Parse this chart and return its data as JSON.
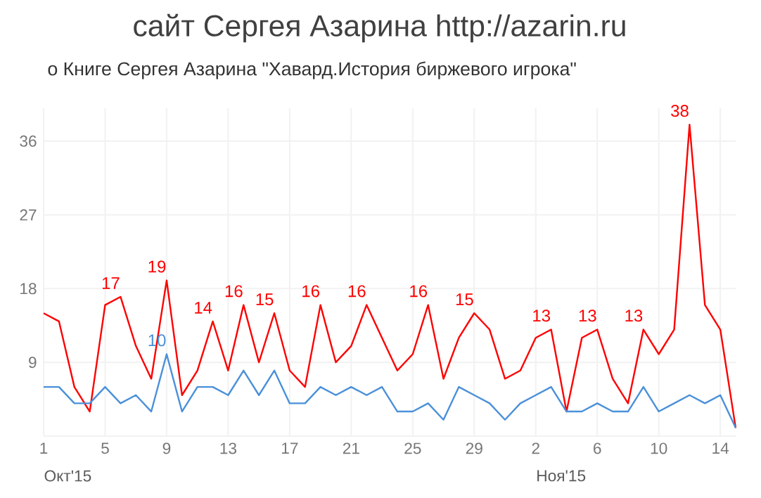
{
  "chart_data": {
    "type": "line",
    "title": "сайт Сергея Азарина http://azarin.ru",
    "subtitle": "о Книге Сергея Азарина \"Хавард.История биржевого игрока\"",
    "x": [
      "2015-10-01",
      "2015-10-02",
      "2015-10-03",
      "2015-10-04",
      "2015-10-05",
      "2015-10-06",
      "2015-10-07",
      "2015-10-08",
      "2015-10-09",
      "2015-10-10",
      "2015-10-11",
      "2015-10-12",
      "2015-10-13",
      "2015-10-14",
      "2015-10-15",
      "2015-10-16",
      "2015-10-17",
      "2015-10-18",
      "2015-10-19",
      "2015-10-20",
      "2015-10-21",
      "2015-10-22",
      "2015-10-23",
      "2015-10-24",
      "2015-10-25",
      "2015-10-26",
      "2015-10-27",
      "2015-10-28",
      "2015-10-29",
      "2015-10-30",
      "2015-10-31",
      "2015-11-01",
      "2015-11-02",
      "2015-11-03",
      "2015-11-04",
      "2015-11-05",
      "2015-11-06",
      "2015-11-07",
      "2015-11-08",
      "2015-11-09",
      "2015-11-10",
      "2015-11-11",
      "2015-11-12",
      "2015-11-13",
      "2015-11-14",
      "2015-11-15"
    ],
    "series": [
      {
        "color": "#ff0000",
        "values": [
          15,
          14,
          6,
          3,
          16,
          17,
          11,
          7,
          19,
          5,
          8,
          14,
          8,
          16,
          9,
          15,
          8,
          6,
          16,
          9,
          11,
          16,
          12,
          8,
          10,
          16,
          7,
          12,
          15,
          13,
          7,
          8,
          12,
          13,
          3,
          12,
          13,
          7,
          4,
          13,
          10,
          13,
          38,
          16,
          13,
          1
        ],
        "value_labels": [
          null,
          null,
          null,
          null,
          null,
          "17",
          null,
          null,
          "19",
          null,
          null,
          "14",
          null,
          "16",
          null,
          "15",
          null,
          null,
          "16",
          null,
          null,
          "16",
          null,
          null,
          null,
          "16",
          null,
          null,
          "15",
          null,
          null,
          null,
          null,
          "13",
          null,
          null,
          "13",
          null,
          null,
          "13",
          null,
          null,
          "38",
          null,
          null,
          null
        ]
      },
      {
        "color": "#4a90d9",
        "values": [
          6,
          6,
          4,
          4,
          6,
          4,
          5,
          3,
          10,
          3,
          6,
          6,
          5,
          8,
          5,
          8,
          4,
          4,
          6,
          5,
          6,
          5,
          6,
          3,
          3,
          4,
          2,
          6,
          5,
          4,
          2,
          4,
          5,
          6,
          3,
          3,
          4,
          3,
          3,
          6,
          3,
          4,
          5,
          4,
          5,
          1
        ],
        "value_labels": [
          null,
          null,
          null,
          null,
          null,
          null,
          null,
          null,
          "10",
          null,
          null,
          null,
          null,
          null,
          null,
          null,
          null,
          null,
          null,
          null,
          null,
          null,
          null,
          null,
          null,
          null,
          null,
          null,
          null,
          null,
          null,
          null,
          null,
          null,
          null,
          null,
          null,
          null,
          null,
          null,
          null,
          null,
          null,
          null,
          null,
          null
        ]
      }
    ],
    "xlim": [
      "2015-10-01",
      "2015-11-15"
    ],
    "xticks": [
      {
        "value": "2015-10-01",
        "label": "1"
      },
      {
        "value": "2015-10-05",
        "label": "5"
      },
      {
        "value": "2015-10-09",
        "label": "9"
      },
      {
        "value": "2015-10-13",
        "label": "13"
      },
      {
        "value": "2015-10-17",
        "label": "17"
      },
      {
        "value": "2015-10-21",
        "label": "21"
      },
      {
        "value": "2015-10-25",
        "label": "25"
      },
      {
        "value": "2015-10-29",
        "label": "29"
      },
      {
        "value": "2015-11-02",
        "label": "2"
      },
      {
        "value": "2015-11-06",
        "label": "6"
      },
      {
        "value": "2015-11-10",
        "label": "10"
      },
      {
        "value": "2015-11-14",
        "label": "14"
      }
    ],
    "ylim": [
      0,
      40
    ],
    "yticks": [
      {
        "value": 0,
        "label": null
      },
      9,
      18,
      27,
      36
    ],
    "annotations": [
      "Окт'15",
      "Ноя'15"
    ],
    "grid": true,
    "marker": "none",
    "line_style": "solid"
  }
}
